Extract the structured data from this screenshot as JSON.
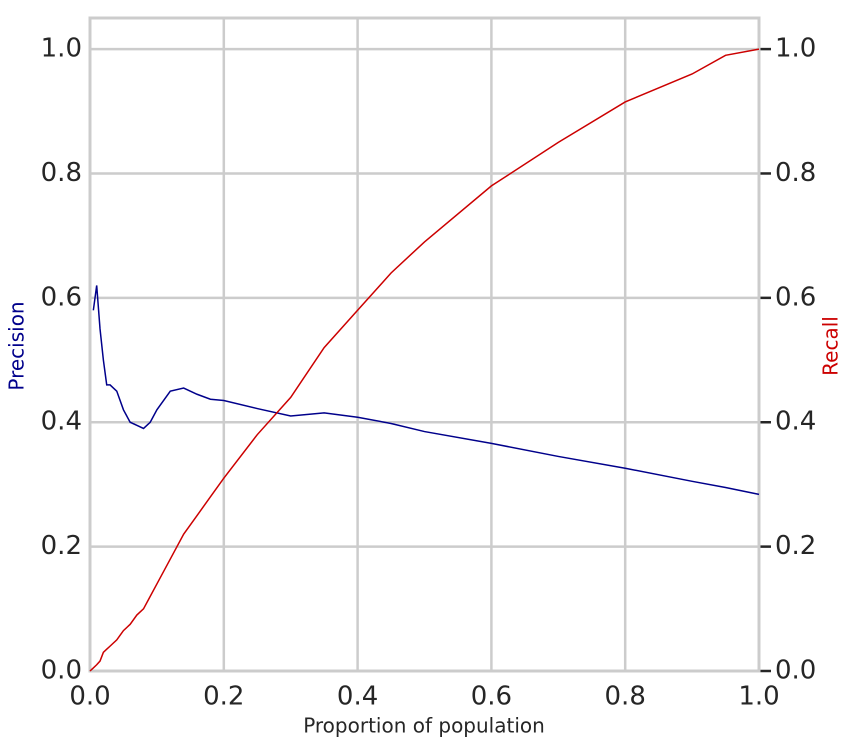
{
  "chart_data": {
    "type": "line",
    "x_label": "Proportion of population",
    "y_label": "Precision",
    "y2_label": "Recall",
    "x": [
      0,
      0.005,
      0.01,
      0.015,
      0.02,
      0.025,
      0.03,
      0.04,
      0.05,
      0.06,
      0.07,
      0.08,
      0.09,
      0.1,
      0.12,
      0.14,
      0.16,
      0.18,
      0.2,
      0.25,
      0.3,
      0.35,
      0.4,
      0.45,
      0.5,
      0.6,
      0.7,
      0.8,
      0.9,
      0.95,
      1.0
    ],
    "series": [
      {
        "name": "Precision",
        "color": "#00008b",
        "axis": "y",
        "values": [
          null,
          0.58,
          0.62,
          0.55,
          0.5,
          0.46,
          0.46,
          0.45,
          0.42,
          0.4,
          0.395,
          0.39,
          0.4,
          0.42,
          0.45,
          0.455,
          0.445,
          0.437,
          0.435,
          0.422,
          0.41,
          0.415,
          0.408,
          0.398,
          0.385,
          0.366,
          0.345,
          0.326,
          0.305,
          0.295,
          0.284
        ]
      },
      {
        "name": "Recall",
        "color": "#cc0000",
        "axis": "y2",
        "values": [
          0,
          0.005,
          0.01,
          0.016,
          0.03,
          0.035,
          0.04,
          0.05,
          0.065,
          0.075,
          0.09,
          0.1,
          0.12,
          0.14,
          0.18,
          0.22,
          0.25,
          0.28,
          0.31,
          0.38,
          0.44,
          0.52,
          0.58,
          0.64,
          0.69,
          0.78,
          0.85,
          0.915,
          0.96,
          0.99,
          1.0
        ]
      }
    ],
    "xlim": [
      0,
      1.0
    ],
    "xticks": [
      {
        "value": 0,
        "label": "0.0"
      },
      0.2,
      0.4,
      0.6,
      0.8,
      {
        "value": 1,
        "label": "1.0"
      }
    ],
    "ylim": [
      0,
      1.05
    ],
    "yticks": [
      {
        "value": 0,
        "label": "0.0"
      },
      0.2,
      0.4,
      0.6,
      0.8,
      {
        "value": 1,
        "label": "1.0"
      }
    ],
    "y2lim": [
      0,
      1.05
    ],
    "y2ticks": [
      {
        "value": 0,
        "label": "0.0"
      },
      0.2,
      0.4,
      0.6,
      0.8,
      {
        "value": 1,
        "label": "1.0"
      }
    ],
    "grid": true
  }
}
